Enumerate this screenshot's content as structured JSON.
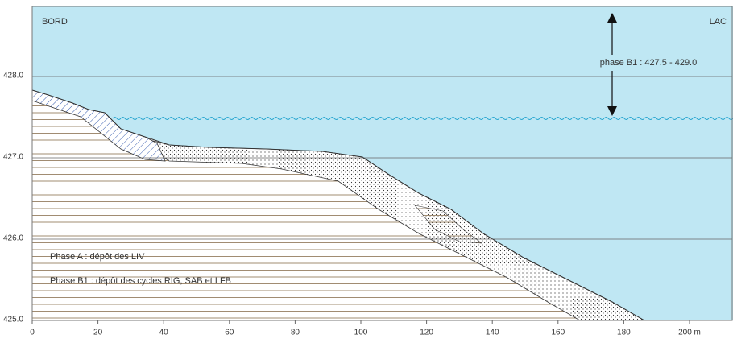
{
  "labels": {
    "left": "BORD",
    "right": "LAC",
    "level": "phase B1 : 427.5 - 429.0"
  },
  "legend": [
    "Phase A : dépôt des LIV",
    "Phase B1 : dépôt des cycles RIG, SAB et LFB"
  ],
  "axes": {
    "yticks": [
      {
        "value": 428,
        "label": "428.0"
      },
      {
        "value": 427,
        "label": "427.0"
      },
      {
        "value": 426,
        "label": "426.0"
      },
      {
        "value": 425,
        "label": "425.0"
      }
    ],
    "xticks": [
      0,
      20,
      40,
      60,
      80,
      100,
      120,
      140,
      160,
      180,
      {
        "value": 200,
        "label": "200 m"
      }
    ]
  }
}
